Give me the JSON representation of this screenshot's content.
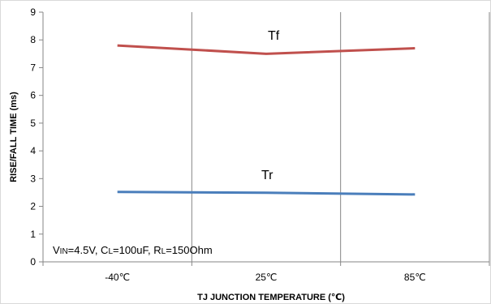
{
  "chart_data": {
    "type": "line",
    "x": [
      "-40℃",
      "25℃",
      "85℃"
    ],
    "ylim": [
      0,
      9
    ],
    "yticks": [
      "0",
      "1",
      "2",
      "3",
      "4",
      "5",
      "6",
      "7",
      "8",
      "9"
    ],
    "xlabel": "TJ JUNCTION TEMPERATURE  (℃)",
    "ylabel": "RISE/FALL TIME  (ms)",
    "grid": "vertical",
    "series": [
      {
        "name": "Tf",
        "values": [
          7.8,
          7.5,
          7.7
        ],
        "color": "#c0504d"
      },
      {
        "name": "Tr",
        "values": [
          2.52,
          2.49,
          2.43
        ],
        "color": "#4a7ebb"
      }
    ],
    "annotation": "VIN=4.5V, CL=100uF, RL=150Ohm"
  }
}
